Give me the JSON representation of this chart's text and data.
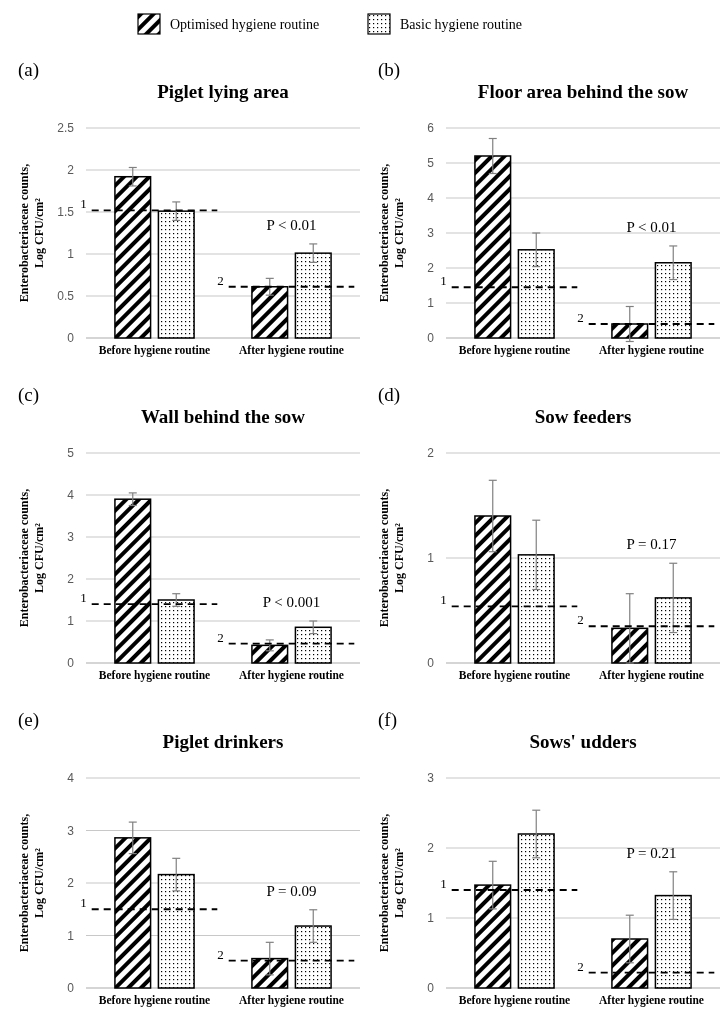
{
  "chart_data": [
    {
      "type": "bar",
      "title": "Piglet lying area",
      "ylabel": "Enterobacteriaceae counts,\nLog CFU/cm²",
      "categories": [
        "Before hygiene routine",
        "After hygiene routine"
      ],
      "ylim": [
        0,
        2.5
      ],
      "yticks": [
        0,
        0.5,
        1,
        1.5,
        2,
        2.5
      ],
      "grid": "y",
      "legend": "top",
      "series": [
        {
          "name": "Optimised hygiene routine",
          "color": "#000000",
          "values": [
            1.92,
            0.61
          ],
          "errors": [
            0.11,
            0.1
          ]
        },
        {
          "name": "Basic hygiene routine",
          "color": "#000000",
          "values": [
            1.51,
            1.01
          ],
          "errors": [
            0.11,
            0.11
          ]
        }
      ],
      "ref_lines": [
        {
          "axis": "y",
          "value": 1.52,
          "line_style": "dashed",
          "color": "#000000"
        },
        {
          "axis": "y",
          "value": 0.61,
          "line_style": "dashed",
          "color": "#000000"
        }
      ],
      "annotations": [
        "(a)",
        "P < 0.01",
        "1",
        "2"
      ]
    },
    {
      "type": "bar",
      "title": "Floor area behind the sow",
      "ylabel": "Enterobacteriaceae counts,\nLog CFU/cm²",
      "categories": [
        "Before hygiene routine",
        "After hygiene routine"
      ],
      "ylim": [
        0,
        6
      ],
      "yticks": [
        0,
        1,
        2,
        3,
        4,
        5,
        6
      ],
      "grid": "y",
      "series": [
        {
          "color": "#000000",
          "values": [
            5.2,
            0.4
          ],
          "errors": [
            0.5,
            0.5
          ]
        },
        {
          "color": "#000000",
          "values": [
            2.52,
            2.15
          ],
          "errors": [
            0.48,
            0.48
          ]
        }
      ],
      "ref_lines": [
        {
          "axis": "y",
          "value": 1.45,
          "line_style": "dashed",
          "color": "#000000"
        },
        {
          "axis": "y",
          "value": 0.4,
          "line_style": "dashed",
          "color": "#000000"
        }
      ],
      "annotations": [
        "(b)",
        "P < 0.01",
        "1",
        "2"
      ]
    },
    {
      "type": "bar",
      "title": "Wall behind the sow",
      "ylabel": "Enterobacteriaceae counts,\nLog CFU/cm²",
      "categories": [
        "Before hygiene routine",
        "After hygiene routine"
      ],
      "ylim": [
        0,
        5
      ],
      "yticks": [
        0,
        1,
        2,
        3,
        4,
        5
      ],
      "grid": "y",
      "series": [
        {
          "color": "#000000",
          "values": [
            3.9,
            0.42
          ],
          "errors": [
            0.15,
            0.13
          ]
        },
        {
          "color": "#000000",
          "values": [
            1.5,
            0.85
          ],
          "errors": [
            0.15,
            0.15
          ]
        }
      ],
      "ref_lines": [
        {
          "axis": "y",
          "value": 1.4,
          "line_style": "dashed",
          "color": "#000000"
        },
        {
          "axis": "y",
          "value": 0.46,
          "line_style": "dashed",
          "color": "#000000"
        }
      ],
      "annotations": [
        "(c)",
        "P < 0.001",
        "1",
        "2"
      ]
    },
    {
      "type": "bar",
      "title": "Sow feeders",
      "ylabel": "Enterobacteriaceae counts,\nLog CFU/cm²",
      "categories": [
        "Before hygiene routine",
        "After hygiene routine"
      ],
      "ylim": [
        0,
        2
      ],
      "yticks": [
        0,
        1,
        2
      ],
      "grid": "y",
      "series": [
        {
          "color": "#000000",
          "values": [
            1.4,
            0.33
          ],
          "errors": [
            0.34,
            0.33
          ]
        },
        {
          "color": "#000000",
          "values": [
            1.03,
            0.62
          ],
          "errors": [
            0.33,
            0.33
          ]
        }
      ],
      "ref_lines": [
        {
          "axis": "y",
          "value": 0.54,
          "line_style": "dashed",
          "color": "#000000"
        },
        {
          "axis": "y",
          "value": 0.35,
          "line_style": "dashed",
          "color": "#000000"
        }
      ],
      "annotations": [
        "(d)",
        "P = 0.17",
        "1",
        "2"
      ]
    },
    {
      "type": "bar",
      "title": "Piglet drinkers",
      "ylabel": "Enterobacteriaceae counts,\nLog CFU/cm²",
      "categories": [
        "Before hygiene routine",
        "After hygiene routine"
      ],
      "ylim": [
        0,
        4
      ],
      "yticks": [
        0,
        1,
        2,
        3,
        4
      ],
      "grid": "y",
      "series": [
        {
          "color": "#000000",
          "values": [
            2.86,
            0.56
          ],
          "errors": [
            0.3,
            0.31
          ]
        },
        {
          "color": "#000000",
          "values": [
            2.16,
            1.18
          ],
          "errors": [
            0.31,
            0.31
          ]
        }
      ],
      "ref_lines": [
        {
          "axis": "y",
          "value": 1.5,
          "line_style": "dashed",
          "color": "#000000"
        },
        {
          "axis": "y",
          "value": 0.52,
          "line_style": "dashed",
          "color": "#000000"
        }
      ],
      "annotations": [
        "(e)",
        "P = 0.09",
        "1",
        "2"
      ]
    },
    {
      "type": "bar",
      "title": "Sows' udders",
      "ylabel": "Enterobacteriaceae counts,\nLog CFU/cm²",
      "categories": [
        "Before hygiene routine",
        "After hygiene routine"
      ],
      "ylim": [
        0,
        3
      ],
      "yticks": [
        0,
        1,
        2,
        3
      ],
      "grid": "y",
      "series": [
        {
          "color": "#000000",
          "values": [
            1.47,
            0.7
          ],
          "errors": [
            0.34,
            0.34
          ]
        },
        {
          "color": "#000000",
          "values": [
            2.2,
            1.32
          ],
          "errors": [
            0.34,
            0.34
          ]
        }
      ],
      "ref_lines": [
        {
          "axis": "y",
          "value": 1.4,
          "line_style": "dashed",
          "color": "#000000"
        },
        {
          "axis": "y",
          "value": 0.22,
          "line_style": "dashed",
          "color": "#000000"
        }
      ],
      "annotations": [
        "(f)",
        "P = 0.21",
        "1",
        "2"
      ]
    }
  ]
}
